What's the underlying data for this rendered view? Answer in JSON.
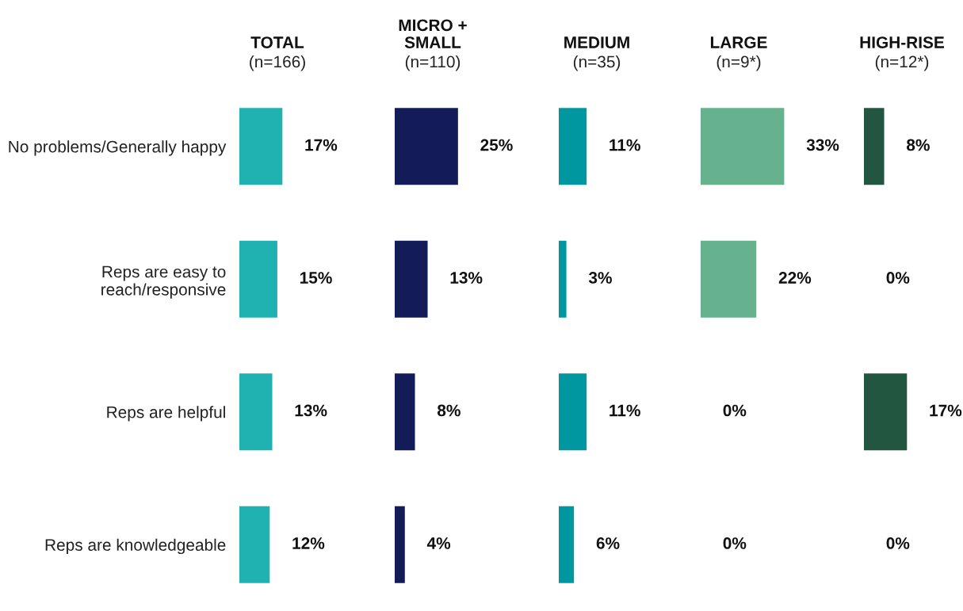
{
  "chart_data": [
    {
      "type": "bar",
      "orientation": "horizontal",
      "title": "TOTAL",
      "subtitle": "(n=166)",
      "categories": [
        "No problems/Generally happy",
        "Reps are easy to\nreach/responsive",
        "Reps are helpful",
        "Reps are knowledgeable"
      ],
      "values": [
        17,
        15,
        13,
        12
      ],
      "value_labels": [
        "17%",
        "15%",
        "13%",
        "12%"
      ],
      "color": "#20b2b0"
    },
    {
      "type": "bar",
      "orientation": "horizontal",
      "title": "MICRO +\nSMALL",
      "subtitle": "(n=110)",
      "values": [
        25,
        13,
        8,
        4
      ],
      "value_labels": [
        "25%",
        "13%",
        "8%",
        "4%"
      ],
      "color": "#131b58"
    },
    {
      "type": "bar",
      "orientation": "horizontal",
      "title": "MEDIUM",
      "subtitle": "(n=35)",
      "values": [
        11,
        3,
        11,
        6
      ],
      "value_labels": [
        "11%",
        "3%",
        "11%",
        "6%"
      ],
      "color": "#0097a0"
    },
    {
      "type": "bar",
      "orientation": "horizontal",
      "title": "LARGE",
      "subtitle": "(n=9*)",
      "values": [
        33,
        22,
        0,
        0
      ],
      "value_labels": [
        "33%",
        "22%",
        "0%",
        "0%"
      ],
      "color": "#66b18e"
    },
    {
      "type": "bar",
      "orientation": "horizontal",
      "title": "HIGH-RISE",
      "subtitle": "(n=12*)",
      "values": [
        8,
        0,
        17,
        0
      ],
      "value_labels": [
        "8%",
        "0%",
        "17%",
        "0%"
      ],
      "color": "#235640"
    }
  ]
}
